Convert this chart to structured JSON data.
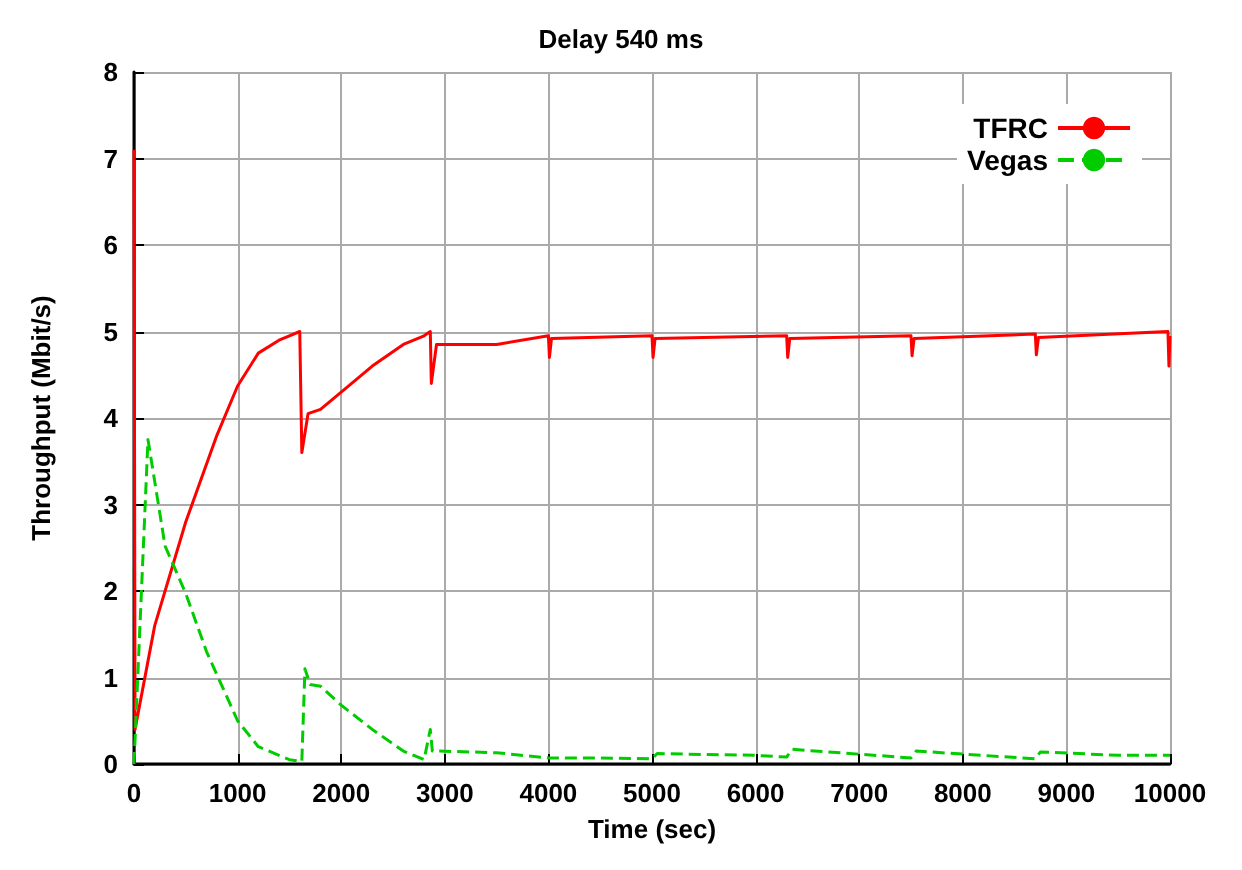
{
  "chart_data": {
    "type": "line",
    "title": "Delay 540 ms",
    "xlabel": "Time (sec)",
    "ylabel": "Throughput (Mbit/s)",
    "xlim": [
      0,
      10000
    ],
    "xticks": [
      0,
      1000,
      2000,
      3000,
      4000,
      5000,
      6000,
      7000,
      8000,
      9000,
      10000
    ],
    "ylim": [
      0,
      8
    ],
    "yticks": [
      0,
      1,
      2,
      3,
      4,
      5,
      6,
      7,
      8
    ],
    "grid": true,
    "legend": "top right",
    "marker": "none",
    "series": [
      {
        "name": "TFRC",
        "color": "#ff0000",
        "line_style": "solid",
        "x": [
          0,
          10,
          200,
          500,
          800,
          1000,
          1200,
          1400,
          1500,
          1600,
          1620,
          1680,
          1800,
          2000,
          2300,
          2600,
          2800,
          2860,
          2870,
          2920,
          3500,
          4000,
          4010,
          4030,
          5000,
          5010,
          5030,
          6300,
          6310,
          6330,
          7500,
          7510,
          7530,
          8700,
          8710,
          8730,
          9980,
          9990,
          10000
        ],
        "values": [
          7.1,
          0.4,
          1.6,
          2.8,
          3.8,
          4.37,
          4.75,
          4.9,
          4.95,
          5.0,
          3.6,
          4.05,
          4.1,
          4.3,
          4.6,
          4.85,
          4.95,
          5.0,
          4.4,
          4.85,
          4.85,
          4.95,
          4.7,
          4.92,
          4.95,
          4.7,
          4.92,
          4.95,
          4.7,
          4.92,
          4.95,
          4.72,
          4.92,
          4.97,
          4.73,
          4.93,
          5.0,
          4.6,
          4.95
        ]
      },
      {
        "name": "Vegas",
        "color": "#00cc00",
        "line_style": "dashed",
        "x": [
          0,
          135,
          300,
          500,
          700,
          1000,
          1200,
          1500,
          1620,
          1650,
          1700,
          1800,
          2000,
          2300,
          2600,
          2800,
          2860,
          2880,
          2950,
          3500,
          4000,
          4500,
          5000,
          5050,
          6000,
          6300,
          6350,
          7500,
          7550,
          8700,
          8750,
          9500,
          10000
        ],
        "values": [
          0,
          3.75,
          2.52,
          1.97,
          1.3,
          0.5,
          0.2,
          0.05,
          0.03,
          1.1,
          0.92,
          0.9,
          0.68,
          0.4,
          0.15,
          0.05,
          0.4,
          0.15,
          0.15,
          0.13,
          0.07,
          0.07,
          0.06,
          0.12,
          0.1,
          0.08,
          0.17,
          0.07,
          0.15,
          0.06,
          0.14,
          0.1,
          0.1
        ]
      }
    ]
  }
}
